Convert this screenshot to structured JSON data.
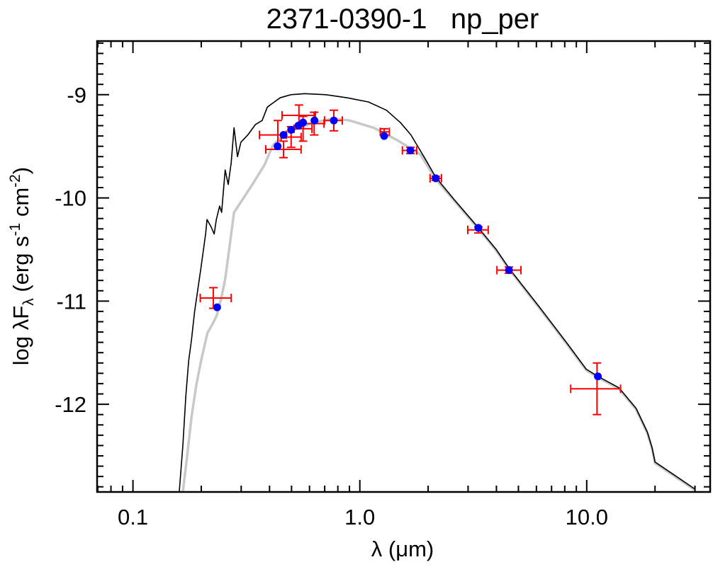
{
  "chart_data": {
    "type": "scatter",
    "title": "2371-0390-1   np_per",
    "xlabel": "λ (μm)",
    "ylabel_parts": {
      "pre": "log λF",
      "sub": "λ",
      "mid1": " (erg s",
      "sup1": "-1",
      "mid2": " cm",
      "sup2": "-2",
      "post": ")"
    },
    "xscale": "log",
    "xlim": [
      0.0695,
      35.0
    ],
    "ylim": [
      -12.85,
      -8.48
    ],
    "xticks": [
      {
        "value": 0.1,
        "label": "0.1"
      },
      {
        "value": 1.0,
        "label": "1.0"
      },
      {
        "value": 10.0,
        "label": "10.0"
      }
    ],
    "yticks": [
      {
        "value": -9,
        "label": "-9"
      },
      {
        "value": -10,
        "label": "-10"
      },
      {
        "value": -11,
        "label": "-11"
      },
      {
        "value": -12,
        "label": "-12"
      }
    ],
    "grid": false,
    "colors": {
      "model_black": "#000000",
      "model_gray": "#c8c8c8",
      "observed": "#ff0000",
      "synthetic": "#0000ff"
    },
    "series": [
      {
        "name": "model-black",
        "type": "line",
        "x": [
          0.16,
          0.166,
          0.171,
          0.176,
          0.181,
          0.187,
          0.199,
          0.209,
          0.212,
          0.221,
          0.228,
          0.233,
          0.241,
          0.246,
          0.255,
          0.263,
          0.271,
          0.279,
          0.289,
          0.299,
          0.321,
          0.346,
          0.371,
          0.391,
          0.414,
          0.445,
          0.496,
          0.572,
          0.71,
          0.881,
          1.09,
          1.31,
          1.51,
          1.68,
          1.94,
          2.16,
          2.59,
          3.33,
          3.99,
          4.54,
          6.15,
          8.2,
          9.95,
          11.2,
          13.87,
          16.5,
          18.5,
          19.4,
          20.0,
          24.1,
          29.9
        ],
        "y": [
          -12.85,
          -12.4,
          -11.92,
          -11.58,
          -11.38,
          -11.1,
          -10.69,
          -10.35,
          -10.21,
          -10.28,
          -10.35,
          -10.21,
          -10.08,
          -10.14,
          -9.73,
          -9.87,
          -9.66,
          -9.32,
          -9.6,
          -9.46,
          -9.39,
          -9.29,
          -9.25,
          -9.12,
          -9.08,
          -9.03,
          -9.0,
          -8.99,
          -9.0,
          -9.03,
          -9.07,
          -9.15,
          -9.27,
          -9.39,
          -9.62,
          -9.8,
          -10.01,
          -10.29,
          -10.5,
          -10.68,
          -11.05,
          -11.41,
          -11.66,
          -11.73,
          -11.84,
          -12.04,
          -12.27,
          -12.42,
          -12.56,
          -12.68,
          -12.82
        ]
      },
      {
        "name": "model-gray",
        "type": "line",
        "x": [
          0.166,
          0.174,
          0.181,
          0.19,
          0.201,
          0.213,
          0.226,
          0.234,
          0.245,
          0.255,
          0.271,
          0.279,
          0.299,
          0.334,
          0.38,
          0.414,
          0.471,
          0.628,
          0.763,
          0.9,
          1.15,
          1.46,
          1.85,
          2.16,
          2.59,
          3.33,
          3.99,
          4.54,
          6.15,
          8.2,
          9.95,
          11.2,
          13.87,
          16.5,
          18.5,
          19.4,
          20.0,
          24.1,
          29.9
        ],
        "y": [
          -12.85,
          -12.47,
          -12.13,
          -11.82,
          -11.55,
          -11.31,
          -11.21,
          -11.14,
          -10.97,
          -10.79,
          -10.35,
          -10.14,
          -10.04,
          -9.88,
          -9.68,
          -9.49,
          -9.37,
          -9.27,
          -9.23,
          -9.25,
          -9.32,
          -9.44,
          -9.58,
          -9.82,
          -10.02,
          -10.3,
          -10.51,
          -10.69,
          -11.06,
          -11.42,
          -11.67,
          -11.74,
          -11.85,
          -12.05,
          -12.28,
          -12.43,
          -12.57,
          -12.69,
          -12.83
        ]
      },
      {
        "name": "observed-photometry",
        "type": "errorbar",
        "points": [
          {
            "x": 0.226,
            "y": -10.97,
            "xlo": 0.198,
            "xhi": 0.271,
            "yerr": 0.1
          },
          {
            "x": 0.435,
            "y": -9.39,
            "xlo": 0.361,
            "xhi": 0.474,
            "yerr": 0.14
          },
          {
            "x": 0.461,
            "y": -9.53,
            "xlo": 0.385,
            "xhi": 0.551,
            "yerr": 0.08
          },
          {
            "x": 0.498,
            "y": -9.41,
            "xlo": 0.45,
            "xhi": 0.551,
            "yerr": 0.1
          },
          {
            "x": 0.539,
            "y": -9.2,
            "xlo": 0.454,
            "xhi": 0.637,
            "yerr": 0.1
          },
          {
            "x": 0.562,
            "y": -9.33,
            "xlo": 0.513,
            "xhi": 0.615,
            "yerr": 0.12
          },
          {
            "x": 0.629,
            "y": -9.28,
            "xlo": 0.564,
            "xhi": 0.695,
            "yerr": 0.11
          },
          {
            "x": 0.768,
            "y": -9.25,
            "xlo": 0.699,
            "xhi": 0.837,
            "yerr": 0.1
          },
          {
            "x": 1.28,
            "y": -9.36,
            "xlo": 1.23,
            "xhi": 1.35,
            "yerr": 0.03
          },
          {
            "x": 1.67,
            "y": -9.54,
            "xlo": 1.54,
            "xhi": 1.78,
            "yerr": 0.03
          },
          {
            "x": 2.16,
            "y": -9.81,
            "xlo": 2.04,
            "xhi": 2.29,
            "yerr": 0.02
          },
          {
            "x": 3.33,
            "y": -10.31,
            "xlo": 2.99,
            "xhi": 3.68,
            "yerr": 0.03
          },
          {
            "x": 4.54,
            "y": -10.7,
            "xlo": 4.02,
            "xhi": 5.13,
            "yerr": 0.03
          },
          {
            "x": 11.1,
            "y": -11.85,
            "xlo": 8.5,
            "xhi": 14.1,
            "yerr": 0.25
          }
        ]
      },
      {
        "name": "model-photometry",
        "type": "scatter",
        "x": [
          0.235,
          0.434,
          0.461,
          0.498,
          0.536,
          0.562,
          0.631,
          0.768,
          1.28,
          1.67,
          2.16,
          3.33,
          4.54,
          11.2
        ],
        "y": [
          -11.06,
          -9.5,
          -9.39,
          -9.34,
          -9.3,
          -9.27,
          -9.25,
          -9.25,
          -9.4,
          -9.54,
          -9.81,
          -10.29,
          -10.7,
          -11.73
        ]
      }
    ]
  }
}
